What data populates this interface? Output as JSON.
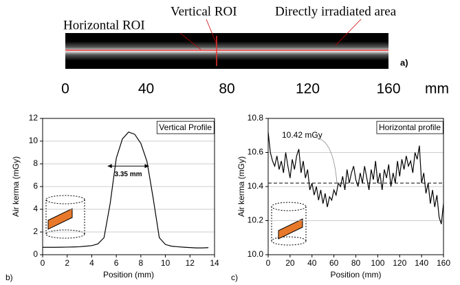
{
  "panel_a": {
    "labels": [
      "Vertical ROI",
      "Horizontal ROI",
      "Directly irradiated area"
    ],
    "panel_label": "a)",
    "ruler_ticks": [
      0,
      40,
      80,
      120,
      160
    ],
    "ruler_unit": "mm"
  },
  "chart_data": [
    {
      "type": "line",
      "panel_label": "b)",
      "xlabel": "Position (mm)",
      "ylabel": "Air kerma (mGy)",
      "annotation": "Vertical Profile",
      "width_marker": {
        "label": "3.35 mm",
        "x": [
          5.3,
          8.65
        ],
        "y": 7.8
      },
      "x": [
        0,
        0.5,
        1,
        1.5,
        2,
        2.5,
        3,
        3.5,
        4,
        4.5,
        5,
        5.5,
        6,
        6.5,
        7,
        7.5,
        8,
        8.5,
        9,
        9.5,
        10,
        10.5,
        11,
        11.5,
        12,
        12.5,
        13,
        13.5
      ],
      "series": [
        {
          "name": "Vertical Profile",
          "color": "#000000",
          "values": [
            0.65,
            0.65,
            0.65,
            0.66,
            0.67,
            0.68,
            0.7,
            0.75,
            0.8,
            0.95,
            1.5,
            4.5,
            8.5,
            10.2,
            10.8,
            10.6,
            9.8,
            8.2,
            5,
            1.5,
            0.9,
            0.75,
            0.7,
            0.66,
            0.63,
            0.6,
            0.6,
            0.62
          ]
        }
      ],
      "xlim": [
        0,
        14
      ],
      "xticks": [
        0,
        2,
        4,
        6,
        8,
        10,
        12,
        14
      ],
      "ylim": [
        0,
        12
      ],
      "yticks": [
        0,
        2,
        4,
        6,
        8,
        10,
        12
      ],
      "grid": true
    },
    {
      "type": "line",
      "panel_label": "c)",
      "xlabel": "Position (mm)",
      "ylabel": "Air kerma (mGy)",
      "annotation": "Horizontal profile",
      "reference": {
        "value": 10.42,
        "label": "10.42 mGy"
      },
      "x": [
        0,
        2,
        4,
        6,
        8,
        10,
        12,
        14,
        16,
        18,
        20,
        22,
        24,
        26,
        28,
        30,
        32,
        34,
        36,
        38,
        40,
        42,
        44,
        46,
        48,
        50,
        52,
        54,
        56,
        58,
        60,
        62,
        64,
        66,
        68,
        70,
        72,
        74,
        76,
        78,
        80,
        82,
        84,
        86,
        88,
        90,
        92,
        94,
        96,
        98,
        100,
        102,
        104,
        106,
        108,
        110,
        112,
        114,
        116,
        118,
        120,
        122,
        124,
        126,
        128,
        130,
        132,
        134,
        136,
        138,
        140,
        142,
        144,
        146,
        148,
        150,
        152,
        154,
        156,
        158,
        160
      ],
      "series": [
        {
          "name": "Horizontal profile",
          "color": "#000000",
          "values": [
            10.72,
            10.6,
            10.55,
            10.52,
            10.58,
            10.5,
            10.55,
            10.48,
            10.6,
            10.52,
            10.45,
            10.56,
            10.5,
            10.58,
            10.62,
            10.48,
            10.55,
            10.45,
            10.5,
            10.38,
            10.42,
            10.35,
            10.4,
            10.32,
            10.38,
            10.3,
            10.36,
            10.28,
            10.34,
            10.32,
            10.38,
            10.35,
            10.42,
            10.4,
            10.46,
            10.38,
            10.5,
            10.42,
            10.48,
            10.52,
            10.44,
            10.4,
            10.48,
            10.42,
            10.52,
            10.45,
            10.38,
            10.5,
            10.44,
            10.55,
            10.42,
            10.48,
            10.38,
            10.5,
            10.45,
            10.53,
            10.4,
            10.48,
            10.42,
            10.55,
            10.46,
            10.56,
            10.5,
            10.58,
            10.52,
            10.55,
            10.48,
            10.6,
            10.56,
            10.64,
            10.42,
            10.48,
            10.36,
            10.42,
            10.3,
            10.38,
            10.28,
            10.35,
            10.22,
            10.18,
            10.3
          ]
        }
      ],
      "xlim": [
        0,
        160
      ],
      "xticks": [
        0,
        20,
        40,
        60,
        80,
        100,
        120,
        140,
        160
      ],
      "ylim": [
        10.0,
        10.8
      ],
      "yticks": [
        {
          "value": 10.0,
          "label": "10.0"
        },
        10.2,
        10.4,
        10.6,
        {
          "value": 10.8,
          "label": "10.8"
        }
      ],
      "grid": true
    }
  ]
}
